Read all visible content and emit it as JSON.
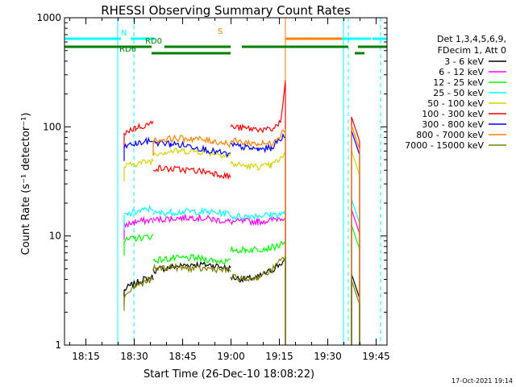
{
  "chart_data": {
    "type": "line",
    "title": "RHESSI Observing Summary Count Rates",
    "xlabel": "Start Time (26-Dec-10 18:08:22)",
    "ylabel": "Count Rate (s⁻¹ detector⁻¹)",
    "x_unit": "minutes after 18:08:22",
    "xlim": [
      0,
      100
    ],
    "ylim": [
      1,
      1000
    ],
    "yscale": "log",
    "ytick_labels": [
      "1",
      "10",
      "100",
      "1000"
    ],
    "xtick_labels": [
      "18:15",
      "18:30",
      "18:45",
      "19:00",
      "19:15",
      "19:30",
      "19:45"
    ],
    "date_stamp": "17-Oct-2021 19:14",
    "legend": {
      "placement": "right",
      "header": [
        "Det 1,3,4,5,6,9,",
        "FDecim 1, Att 0"
      ]
    },
    "series": [
      {
        "name": "3 - 6 keV",
        "color": "#000000",
        "segments": [
          {
            "x": [
              18.5,
              20.5,
              24.5,
              27.5
            ],
            "y": [
              3.2,
              3.5,
              4.0,
              4.2
            ]
          },
          {
            "x": [
              27.5,
              33,
              40,
              46,
              51.5
            ],
            "y": [
              4.8,
              5.2,
              5.5,
              5.4,
              5.0
            ]
          },
          {
            "x": [
              51.5,
              56,
              60,
              64,
              68.5
            ],
            "y": [
              4.2,
              4.0,
              4.2,
              4.8,
              6.0
            ]
          }
        ]
      },
      {
        "name": "6 - 12 keV",
        "color": "#ff00ff",
        "segments": [
          {
            "x": [
              18.5,
              22,
              27.5
            ],
            "y": [
              12.5,
              13.5,
              14
            ]
          },
          {
            "x": [
              27.5,
              33,
              40,
              46,
              51.5
            ],
            "y": [
              14,
              14.5,
              14.8,
              14.2,
              13.5
            ]
          },
          {
            "x": [
              51.5,
              56,
              60,
              64,
              68.5
            ],
            "y": [
              13.5,
              13.6,
              13.5,
              14,
              15
            ]
          }
        ]
      },
      {
        "name": "12 - 25 keV",
        "color": "#00ff00",
        "segments": [
          {
            "x": [
              18.5,
              22,
              27.5
            ],
            "y": [
              9,
              9.5,
              10
            ]
          },
          {
            "x": [
              27.5,
              33,
              40,
              46,
              51.5
            ],
            "y": [
              6,
              6.2,
              6.3,
              6.0,
              5.8
            ]
          },
          {
            "x": [
              51.5,
              56,
              60,
              64,
              68.5
            ],
            "y": [
              7.5,
              7.4,
              7.6,
              7.8,
              8.5
            ]
          }
        ]
      },
      {
        "name": "25 - 50 keV",
        "color": "#00ffff",
        "segments": [
          {
            "x": [
              18.5,
              22,
              27.5
            ],
            "y": [
              15.5,
              16.5,
              18
            ]
          },
          {
            "x": [
              27.5,
              33,
              40,
              46,
              51.5
            ],
            "y": [
              16,
              16.5,
              16.8,
              16.5,
              16
            ]
          },
          {
            "x": [
              51.5,
              56,
              60,
              64,
              68.5
            ],
            "y": [
              15,
              15.2,
              15.4,
              15.6,
              16
            ]
          }
        ]
      },
      {
        "name": "50 - 100 keV",
        "color": "#d4d400",
        "segments": [
          {
            "x": [
              18.5,
              22,
              27.5
            ],
            "y": [
              43,
              46,
              49
            ]
          },
          {
            "x": [
              27.5,
              33,
              40,
              46,
              51.5
            ],
            "y": [
              57,
              60,
              60,
              58,
              54
            ]
          },
          {
            "x": [
              51.5,
              56,
              60,
              64,
              68.5
            ],
            "y": [
              46,
              44,
              43,
              44,
              55
            ]
          }
        ]
      },
      {
        "name": "100 - 300 keV",
        "color": "#ff0000",
        "segments": [
          {
            "x": [
              18.5,
              22,
              27.5
            ],
            "y": [
              88,
              98,
              108
            ]
          },
          {
            "x": [
              27.5,
              33,
              40,
              46,
              51.5
            ],
            "y": [
              42,
              41,
              40,
              38,
              35
            ]
          },
          {
            "x": [
              51.5,
              56,
              60,
              64,
              67,
              68.5
            ],
            "y": [
              100,
              97,
              95,
              93,
              110,
              250
            ]
          }
        ]
      },
      {
        "name": "300 - 800 keV",
        "color": "#0000ff",
        "segments": [
          {
            "x": [
              18.5,
              22,
              27.5
            ],
            "y": [
              66,
              70,
              75
            ]
          },
          {
            "x": [
              27.5,
              33,
              40,
              46,
              51.5
            ],
            "y": [
              72,
              70,
              66,
              60,
              55
            ]
          },
          {
            "x": [
              51.5,
              56,
              60,
              64,
              68.5
            ],
            "y": [
              68,
              65,
              62,
              64,
              85
            ]
          }
        ]
      },
      {
        "name": "800 - 7000 keV",
        "color": "#ff8000",
        "segments": [
          {
            "x": [
              27.5,
              33,
              40,
              46,
              51.5
            ],
            "y": [
              74,
              78,
              78,
              74,
              70
            ]
          },
          {
            "x": [
              51.5,
              56,
              60,
              64,
              68.5
            ],
            "y": [
              75,
              72,
              70,
              70,
              95
            ]
          }
        ]
      },
      {
        "name": "7000 - 15000 keV",
        "color": "#808000",
        "segments": [
          {
            "x": [
              18.5,
              22,
              27.5
            ],
            "y": [
              2.8,
              3.5,
              4.0
            ]
          },
          {
            "x": [
              27.5,
              33,
              40,
              46,
              51.5
            ],
            "y": [
              5.0,
              5.2,
              5.0,
              5.0,
              4.8
            ]
          },
          {
            "x": [
              51.5,
              56,
              60,
              64,
              68.5
            ],
            "y": [
              4.2,
              4.0,
              4.2,
              4.8,
              6.5
            ]
          }
        ]
      }
    ],
    "late_burst_x": [
      89,
      91.5
    ],
    "flag_bars": [
      {
        "label": "N",
        "color": "#00ffff",
        "row": "top",
        "ranges": [
          [
            0,
            17.5
          ],
          [
            20.5,
            28
          ]
        ],
        "gaps_dashed": true
      },
      {
        "label": "N",
        "color": "#00ffff",
        "row": "top",
        "ranges": [
          [
            86,
            95
          ],
          [
            95.5,
            100
          ]
        ]
      },
      {
        "label": "S",
        "color": "#ff8000",
        "row": "top",
        "ranges": [
          [
            68.5,
            86
          ]
        ]
      },
      {
        "label": "RD0",
        "color": "#008000",
        "row": "mid",
        "ranges": [
          [
            0,
            27
          ],
          [
            31,
            51.5
          ],
          [
            55,
            88
          ],
          [
            91,
            100
          ]
        ]
      },
      {
        "label": "RD6",
        "color": "#008000",
        "row": "low",
        "ranges": [
          [
            27,
            51.5
          ],
          [
            90,
            93
          ]
        ]
      }
    ],
    "vlines": [
      {
        "x": 0,
        "color": "#00ffff",
        "style": "solid"
      },
      {
        "x": 16.5,
        "color": "#00ffff",
        "style": "solid"
      },
      {
        "x": 21.5,
        "color": "#00ffff",
        "style": "dashed"
      },
      {
        "x": 68.5,
        "color": "#ff8000",
        "style": "solid"
      },
      {
        "x": 86.5,
        "color": "#00ffff",
        "style": "solid"
      },
      {
        "x": 88,
        "color": "#00ffff",
        "style": "dashed"
      },
      {
        "x": 98,
        "color": "#00ffff",
        "style": "dashed"
      }
    ]
  }
}
